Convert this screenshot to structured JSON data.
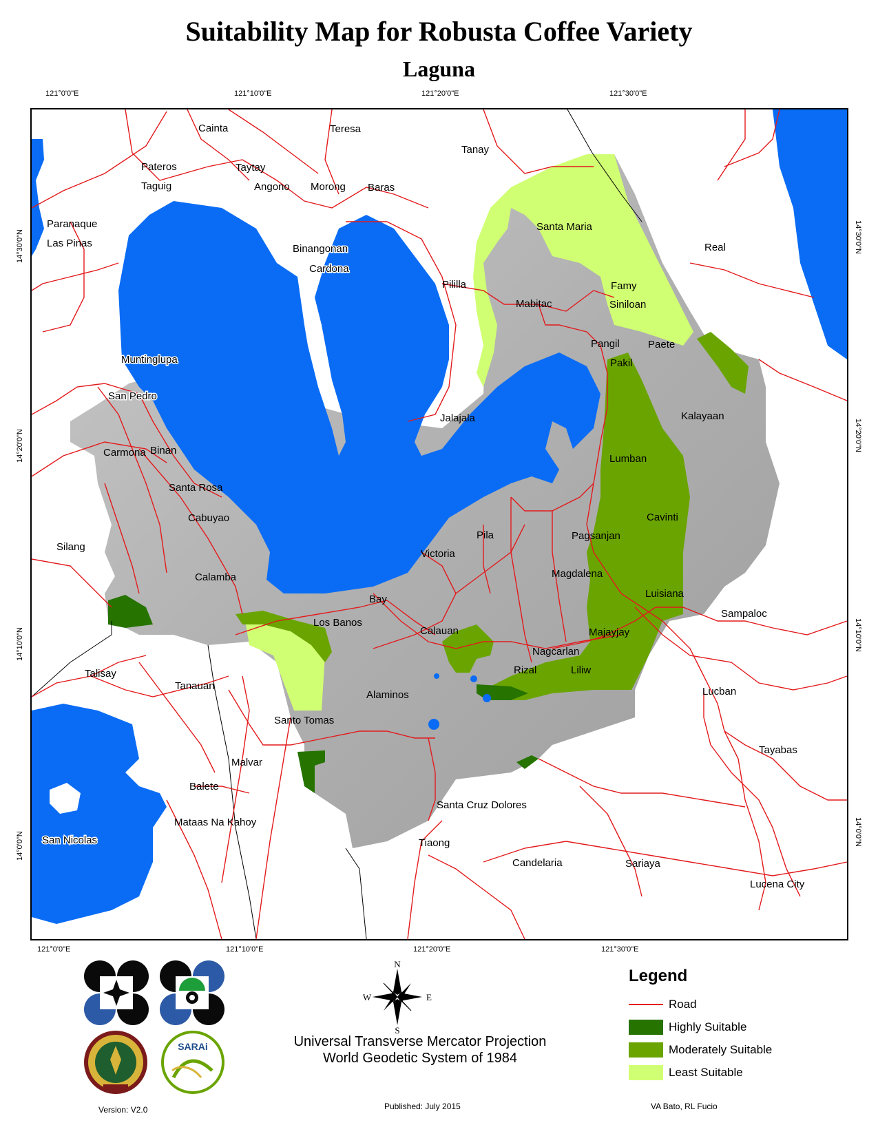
{
  "title": "Suitability Map for Robusta Coffee Variety",
  "subtitle": "Laguna",
  "longitudes": [
    "121°0'0\"E",
    "121°10'0\"E",
    "121°20'0\"E",
    "121°30'0\"E"
  ],
  "latitudes": [
    "14°30'0\"N",
    "14°20'0\"N",
    "14°10'0\"N",
    "14°0'0\"N"
  ],
  "places": [
    "Cainta",
    "Teresa",
    "Tanay",
    "Pateros",
    "Taytay",
    "Taguig",
    "Angono",
    "Morong",
    "Baras",
    "Paranaque",
    "Las Pinas",
    "Santa Maria",
    "Binangonan",
    "Cardona",
    "Real",
    "Pililla",
    "Famy",
    "Mabitac",
    "Siniloan",
    "Pangil",
    "Paete",
    "Pakil",
    "Muntinglupa",
    "San Pedro",
    "Kalayaan",
    "Jalajala",
    "Carmona",
    "Binan",
    "Lumban",
    "Santa Rosa",
    "Cabuyao",
    "Cavinti",
    "Pila",
    "Pagsanjan",
    "Silang",
    "Victoria",
    "Magdalena",
    "Calamba",
    "Luisiana",
    "Bay",
    "Sampaloc",
    "Los Banos",
    "Calauan",
    "Majayjay",
    "Nagcarlan",
    "Talisay",
    "Rizal",
    "Liliw",
    "Tanauan",
    "Lucban",
    "Alaminos",
    "Santo Tomas",
    "Tayabas",
    "Malvar",
    "Balete",
    "Santa Cruz Dolores",
    "Mataas Na Kahoy",
    "San Nicolas",
    "Tiaong",
    "Candelaria",
    "Sariaya",
    "Lucena City"
  ],
  "compass": {
    "n": "N",
    "s": "S",
    "e": "E",
    "w": "W"
  },
  "legend": {
    "title": "Legend",
    "items": [
      {
        "label": "Road",
        "color": "#e31a1c",
        "kind": "line"
      },
      {
        "label": "Highly Suitable",
        "color": "#267300",
        "kind": "fill"
      },
      {
        "label": "Moderately Suitable",
        "color": "#6aa400",
        "kind": "fill"
      },
      {
        "label": "Least Suitable",
        "color": "#d1ff73",
        "kind": "fill"
      }
    ]
  },
  "projection": {
    "line1": "Universal Transverse Mercator Projection",
    "line2": "World Geodetic System of 1984"
  },
  "footer": {
    "version": "Version: V2.0",
    "published": "Published: July 2015",
    "authors": "VA Bato, RL Fucio"
  },
  "colors": {
    "water": "#0a6cf5",
    "terrain": "#b5b5b5",
    "road": "#e31a1c"
  },
  "logos": [
    "pcaarrd-logo",
    "dost-logo",
    "up-seal",
    "sarai-logo"
  ],
  "sarai_text": "SARAi"
}
